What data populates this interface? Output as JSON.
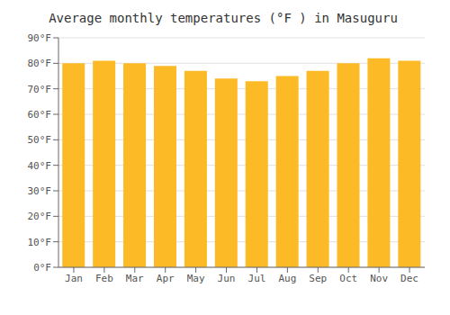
{
  "chart_data": {
    "type": "bar",
    "title": "Average monthly temperatures (°F ) in Masuguru",
    "categories": [
      "Jan",
      "Feb",
      "Mar",
      "Apr",
      "May",
      "Jun",
      "Jul",
      "Aug",
      "Sep",
      "Oct",
      "Nov",
      "Dec"
    ],
    "values": [
      80,
      81,
      80,
      79,
      77,
      74,
      73,
      75,
      77,
      80,
      82,
      81
    ],
    "color": "#FDBA27",
    "ylim": [
      0,
      90
    ],
    "yticks": [
      {
        "value": 0,
        "label": "0°F"
      },
      {
        "value": 10,
        "label": "10°F"
      },
      {
        "value": 20,
        "label": "20°F"
      },
      {
        "value": 30,
        "label": "30°F"
      },
      {
        "value": 40,
        "label": "40°F"
      },
      {
        "value": 50,
        "label": "50°F"
      },
      {
        "value": 60,
        "label": "60°F"
      },
      {
        "value": 70,
        "label": "70°F"
      },
      {
        "value": 80,
        "label": "80°F"
      },
      {
        "value": 90,
        "label": "90°F"
      }
    ],
    "grid": true
  }
}
